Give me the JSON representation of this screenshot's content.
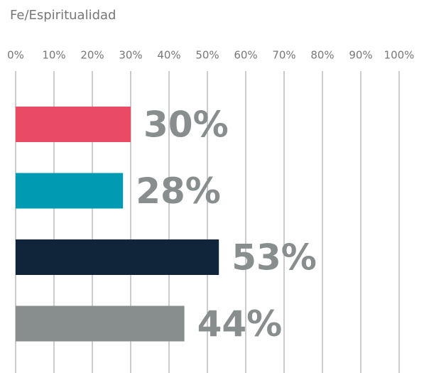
{
  "chart_data": {
    "type": "bar",
    "orientation": "horizontal",
    "title": "Fe/Espiritualidad",
    "values": [
      30,
      28,
      53,
      44
    ],
    "value_labels": [
      "30%",
      "28%",
      "53%",
      "44%"
    ],
    "colors": [
      "#e94b65",
      "#009ab3",
      "#10253a",
      "#888d8e"
    ],
    "label_color": "#888d8e",
    "xlim": [
      0,
      100
    ],
    "xticks": [
      {
        "value": 0,
        "label": "0%"
      },
      {
        "value": 10,
        "label": "10%"
      },
      {
        "value": 20,
        "label": "20%"
      },
      {
        "value": 30,
        "label": "30%"
      },
      {
        "value": 40,
        "label": "40%"
      },
      {
        "value": 50,
        "label": "50%"
      },
      {
        "value": 60,
        "label": "60%"
      },
      {
        "value": 70,
        "label": "70%"
      },
      {
        "value": 80,
        "label": "80%"
      },
      {
        "value": 90,
        "label": "90%"
      },
      {
        "value": 100,
        "label": "100%"
      }
    ],
    "grid": true
  }
}
